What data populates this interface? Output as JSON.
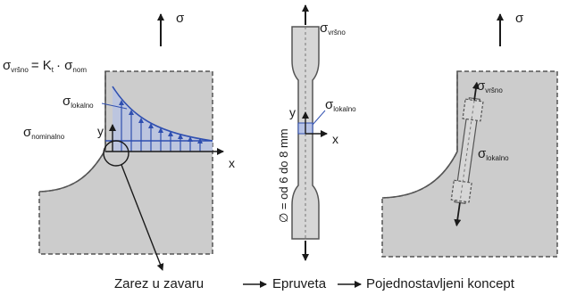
{
  "colors": {
    "stress_line": "#2f4fb0",
    "stress_fill": "#b7c3e6",
    "part_fill": "#cccccc",
    "outline": "#555555"
  },
  "panel_left": {
    "sigma_label": "σ",
    "formula": {
      "sigma": "σ",
      "sub_vrh": "vršno",
      "equals": "= K",
      "sub_t": "t",
      "dot": "· σ",
      "sub_nom": "nom"
    },
    "lokalno": {
      "sigma": "σ",
      "sub": "lokalno"
    },
    "nominalno": {
      "sigma": "σ",
      "sub": "nominalno"
    },
    "y_label": "y",
    "x_label": "x"
  },
  "panel_middle": {
    "vrsno": {
      "sigma": "σ",
      "sub": "vršno"
    },
    "lokalno": {
      "sigma": "σ",
      "sub": "lokalno"
    },
    "y_label": "y",
    "x_label": "x",
    "diameter": "∅ = od 6 do 8 mm"
  },
  "panel_right": {
    "sigma_label": "σ",
    "vrsno": {
      "sigma": "σ",
      "sub": "vršno"
    },
    "lokalno": {
      "sigma": "σ",
      "sub": "lokalno"
    }
  },
  "captions": {
    "zarez": "Zarez u zavaru",
    "epruveta": "Epruveta",
    "koncept": "Pojednostavljeni koncept"
  }
}
